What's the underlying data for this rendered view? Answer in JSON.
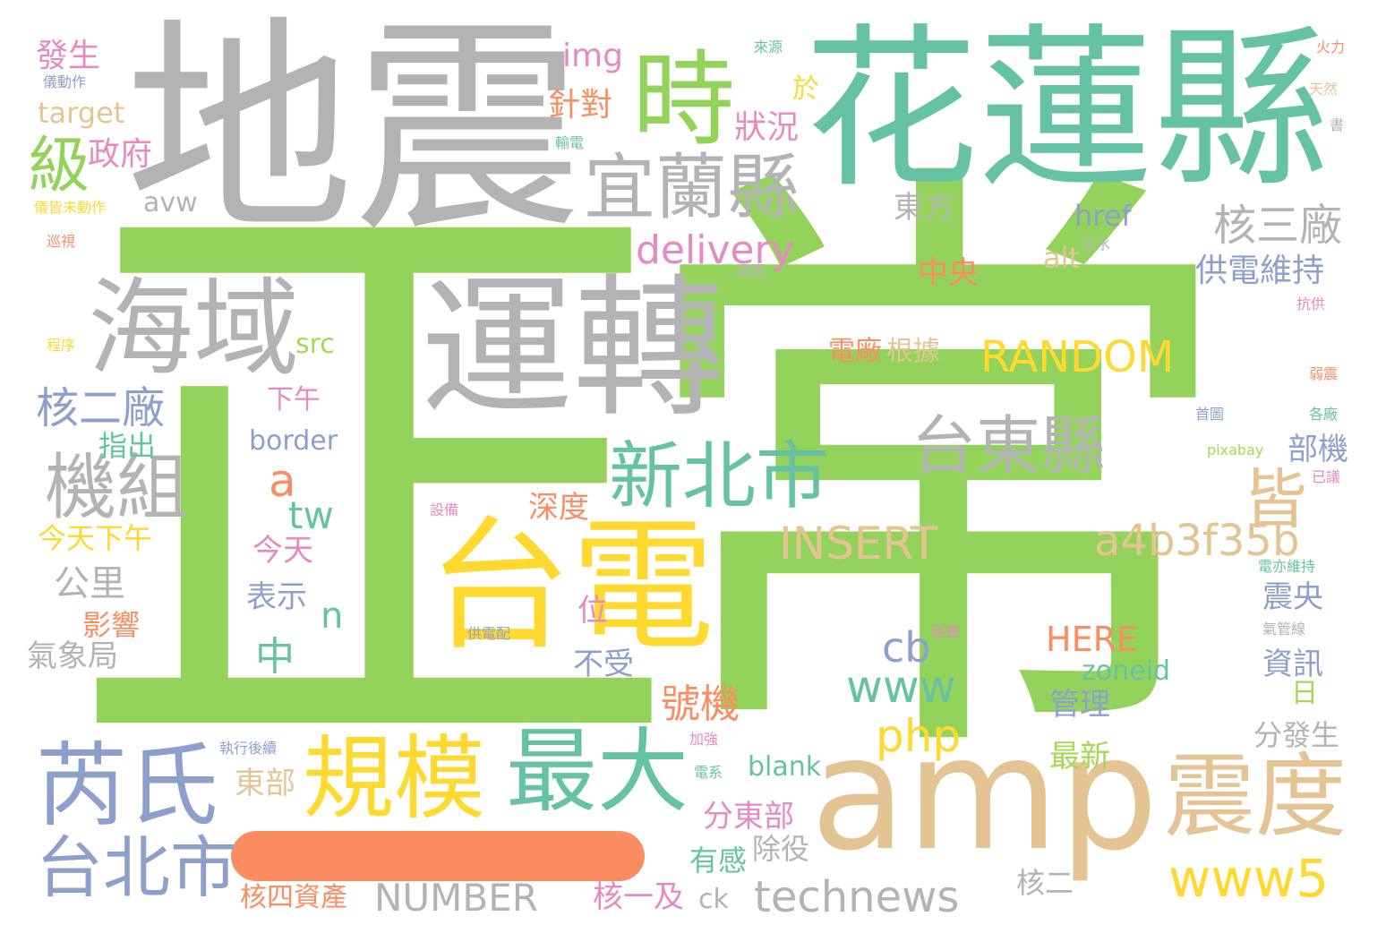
{
  "palette": {
    "green": "#93d35b",
    "gray": "#b3b3b3",
    "teal": "#66c2a5",
    "tan": "#e5c494",
    "yellow": "#ffd92f",
    "blue": "#8da0cb",
    "pink": "#e78ac3",
    "orange": "#fc8d62",
    "lime": "#a6d854"
  },
  "words": [
    {
      "text": "正",
      "color": "#93d35b"
    },
    {
      "text": "常",
      "color": "#93d35b"
    },
    {
      "text": "地震",
      "color": "#b3b3b3"
    },
    {
      "text": "花蓮縣",
      "color": "#66c2a5"
    },
    {
      "text": "時",
      "color": "#93d35b"
    },
    {
      "text": "級",
      "color": "#93d35b"
    },
    {
      "text": "宜蘭縣",
      "color": "#b3b3b3"
    },
    {
      "text": "海域",
      "color": "#b3b3b3"
    },
    {
      "text": "運轉",
      "color": "#b3b3b3"
    },
    {
      "text": "台電",
      "color": "#ffd92f"
    },
    {
      "text": "amp",
      "color": "#e5c494"
    },
    {
      "text": "芮氏",
      "color": "#8da0cb"
    },
    {
      "text": "規模",
      "color": "#ffd92f"
    },
    {
      "text": "最大",
      "color": "#66c2a5"
    },
    {
      "text": "震度",
      "color": "#e5c494"
    },
    {
      "text": "台北市",
      "color": "#8da0cb"
    },
    {
      "text": "新北市",
      "color": "#66c2a5"
    },
    {
      "text": "台東縣",
      "color": "#b3b3b3"
    },
    {
      "text": "機組",
      "color": "#b3b3b3"
    },
    {
      "text": "皆",
      "color": "#e5c494"
    },
    {
      "text": "a4b3f35b",
      "color": "#e5c494"
    },
    {
      "text": "www5",
      "color": "#ffd92f"
    },
    {
      "text": "technews",
      "color": "#b3b3b3"
    },
    {
      "text": "NUMBER",
      "color": "#b3b3b3"
    },
    {
      "text": "INSERT",
      "color": "#e5c494"
    },
    {
      "text": "RANDOM",
      "color": "#ffd92f"
    },
    {
      "text": "delivery",
      "color": "#e78ac3"
    },
    {
      "text": "核二廠",
      "color": "#8da0cb"
    },
    {
      "text": "核三廠",
      "color": "#b3b3b3"
    },
    {
      "text": "www",
      "color": "#66c2a5"
    },
    {
      "text": "php",
      "color": "#ffd92f"
    },
    {
      "text": "cb",
      "color": "#8da0cb"
    },
    {
      "text": "HERE",
      "color": "#fc8d62"
    },
    {
      "text": "tw",
      "color": "#66c2a5"
    },
    {
      "text": "a",
      "color": "#fc8d62"
    },
    {
      "text": "n",
      "color": "#66c2a5"
    },
    {
      "text": "中",
      "color": "#66c2a5"
    },
    {
      "text": "號機",
      "color": "#fc8d62"
    },
    {
      "text": "狀況",
      "color": "#e78ac3"
    },
    {
      "text": "針對",
      "color": "#fc8d62"
    },
    {
      "text": "於",
      "color": "#ffd92f"
    },
    {
      "text": "img",
      "color": "#e78ac3"
    },
    {
      "text": "發生",
      "color": "#e78ac3"
    },
    {
      "text": "儀動作",
      "color": "#8da0cb"
    },
    {
      "text": "target",
      "color": "#e5c494"
    },
    {
      "text": "政府",
      "color": "#e78ac3"
    },
    {
      "text": "avw",
      "color": "#b3b3b3"
    },
    {
      "text": "儀皆未動作",
      "color": "#ffd92f"
    },
    {
      "text": "巡視",
      "color": "#fc8d62"
    },
    {
      "text": "程序",
      "color": "#ffd92f"
    },
    {
      "text": "src",
      "color": "#a6d854"
    },
    {
      "text": "來源",
      "color": "#66c2a5"
    },
    {
      "text": "輸電",
      "color": "#66c2a5"
    },
    {
      "text": "東方",
      "color": "#b3b3b3"
    },
    {
      "text": "href",
      "color": "#8da0cb"
    },
    {
      "text": "alt",
      "color": "#e5c494"
    },
    {
      "text": "各水",
      "color": "#b3b3b3"
    },
    {
      "text": "壩堰",
      "color": "#b3b3b3"
    },
    {
      "text": "中央",
      "color": "#fc8d62"
    },
    {
      "text": "供電維持",
      "color": "#8da0cb"
    },
    {
      "text": "火力",
      "color": "#fc8d62"
    },
    {
      "text": "天然",
      "color": "#e5c494"
    },
    {
      "text": "書",
      "color": "#b3b3b3"
    },
    {
      "text": "抗供",
      "color": "#e78ac3"
    },
    {
      "text": "弱震",
      "color": "#fc8d62"
    },
    {
      "text": "各廠",
      "color": "#66c2a5"
    },
    {
      "text": "已議",
      "color": "#e78ac3"
    },
    {
      "text": "首圖",
      "color": "#8da0cb"
    },
    {
      "text": "pixabay",
      "color": "#a6d854"
    },
    {
      "text": "部機",
      "color": "#8da0cb"
    },
    {
      "text": "電亦維持",
      "color": "#66c2a5"
    },
    {
      "text": "氣管線",
      "color": "#b3b3b3"
    },
    {
      "text": "電廠",
      "color": "#fc8d62"
    },
    {
      "text": "根據",
      "color": "#e5c494"
    },
    {
      "text": "下午",
      "color": "#e78ac3"
    },
    {
      "text": "border",
      "color": "#8da0cb"
    },
    {
      "text": "指出",
      "color": "#66c2a5"
    },
    {
      "text": "設備",
      "color": "#e78ac3"
    },
    {
      "text": "深度",
      "color": "#fc8d62"
    },
    {
      "text": "今天下午",
      "color": "#ffd92f"
    },
    {
      "text": "今天",
      "color": "#e78ac3"
    },
    {
      "text": "公里",
      "color": "#b3b3b3"
    },
    {
      "text": "表示",
      "color": "#8da0cb"
    },
    {
      "text": "位",
      "color": "#e78ac3"
    },
    {
      "text": "影響",
      "color": "#fc8d62"
    },
    {
      "text": "氣象局",
      "color": "#b3b3b3"
    },
    {
      "text": "供電配",
      "color": "#8da0cb"
    },
    {
      "text": "不受",
      "color": "#8da0cb"
    },
    {
      "text": "巡查",
      "color": "#e78ac3"
    },
    {
      "text": "zoneid",
      "color": "#66c2a5"
    },
    {
      "text": "震央",
      "color": "#8da0cb"
    },
    {
      "text": "資訊",
      "color": "#8da0cb"
    },
    {
      "text": "日",
      "color": "#a6d854"
    },
    {
      "text": "管理",
      "color": "#8da0cb"
    },
    {
      "text": "分發生",
      "color": "#b3b3b3"
    },
    {
      "text": "最新",
      "color": "#a6d854"
    },
    {
      "text": "執行後續",
      "color": "#8da0cb"
    },
    {
      "text": "加強",
      "color": "#e78ac3"
    },
    {
      "text": "電系",
      "color": "#66c2a5"
    },
    {
      "text": "blank",
      "color": "#66c2a5"
    },
    {
      "text": "東部",
      "color": "#e5c494"
    },
    {
      "text": "分東部",
      "color": "#e78ac3"
    },
    {
      "text": "有感",
      "color": "#66c2a5"
    },
    {
      "text": "除役",
      "color": "#b3b3b3"
    },
    {
      "text": "核二",
      "color": "#b3b3b3"
    },
    {
      "text": "核四資產",
      "color": "#fc8d62"
    },
    {
      "text": "核一及",
      "color": "#e78ac3"
    },
    {
      "text": "ck",
      "color": "#b3b3b3"
    }
  ]
}
